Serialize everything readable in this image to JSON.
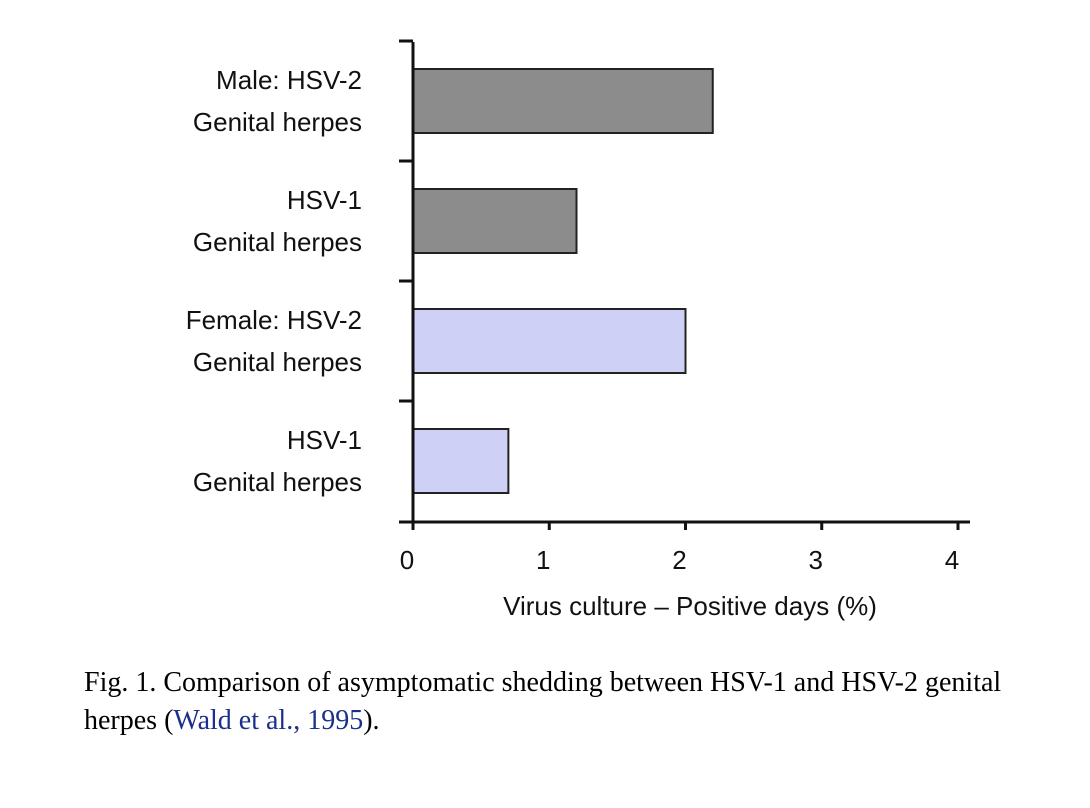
{
  "chart_data": {
    "type": "bar",
    "orientation": "horizontal",
    "categories": [
      [
        "Male: HSV-2",
        "Genital herpes"
      ],
      [
        "HSV-1",
        "Genital herpes"
      ],
      [
        "Female: HSV-2",
        "Genital herpes"
      ],
      [
        "HSV-1",
        "Genital herpes"
      ]
    ],
    "values": [
      2.2,
      1.2,
      2.0,
      0.7
    ],
    "bar_colors": [
      "#8c8c8c",
      "#8c8c8c",
      "#cfd0f5",
      "#cfd0f5"
    ],
    "bar_stroke": "#222222",
    "xlabel": "Virus culture – Positive days (%)",
    "xlim": [
      0,
      4
    ],
    "xticks": [
      0,
      1,
      2,
      3,
      4
    ],
    "grid": false
  },
  "caption": {
    "text_before": "Fig. 1. Comparison of asymptomatic shedding between HSV-1 and HSV-2 genital herpes (",
    "reference": "Wald et al., 1995",
    "text_after": ")."
  }
}
